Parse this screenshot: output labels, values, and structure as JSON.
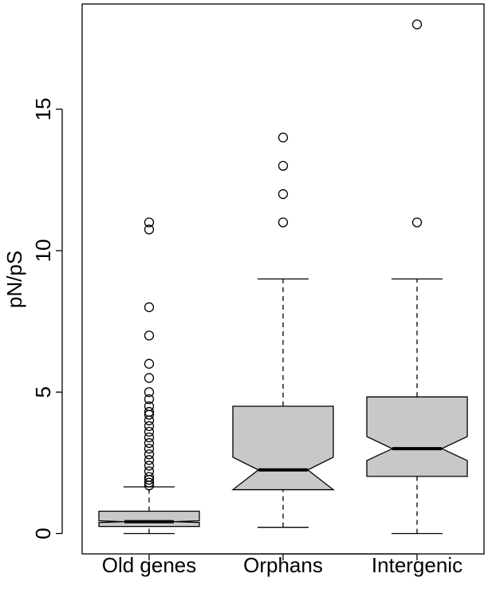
{
  "chart_data": {
    "type": "boxplot",
    "y_label": "pN/pS",
    "categories": [
      "Old genes",
      "Orphans",
      "Intergenic"
    ],
    "boxes": [
      {
        "low": 0,
        "q1": 0.25,
        "median": 0.42,
        "q3": 0.79,
        "high": 1.65,
        "notch_low": 0.39,
        "notch_high": 0.45,
        "outliers": [
          11,
          10.75,
          8,
          7,
          6,
          5.5,
          5,
          4.75,
          4.5,
          4.3,
          4.2,
          4.0,
          3.8,
          3.6,
          3.4,
          3.2,
          3.0,
          2.8,
          2.6,
          2.4,
          2.2,
          2.0,
          1.9,
          1.8,
          1.7
        ]
      },
      {
        "low": 0.22,
        "q1": 1.55,
        "median": 2.25,
        "q3": 4.5,
        "high": 9,
        "notch_low": 1.55,
        "notch_high": 2.7,
        "outliers": [
          11,
          12,
          13,
          14
        ]
      },
      {
        "low": 0,
        "q1": 2.02,
        "median": 3.0,
        "q3": 4.83,
        "high": 9,
        "notch_low": 2.58,
        "notch_high": 3.43,
        "outliers": [
          11,
          18
        ]
      }
    ],
    "color": "#c8c8c8",
    "ylim": [
      -0.72,
      18.72
    ],
    "yticks": [
      0,
      5,
      10,
      15
    ]
  }
}
